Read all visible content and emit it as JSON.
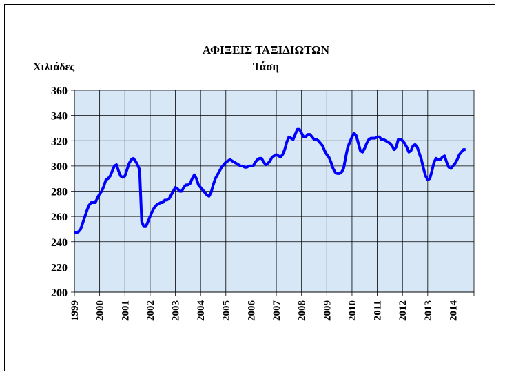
{
  "chart_data": {
    "type": "line",
    "title": "ΑΦΙΞΕΙΣ ΤΑΞΙΔΙΩΤΩΝ",
    "subtitle": "Τάση",
    "y_label": "Χιλιάδες",
    "categories": [
      "1999",
      null,
      null,
      null,
      null,
      null,
      null,
      null,
      null,
      null,
      null,
      null,
      "2000",
      null,
      null,
      null,
      null,
      null,
      null,
      null,
      null,
      null,
      null,
      null,
      "2001",
      null,
      null,
      null,
      null,
      null,
      null,
      null,
      null,
      null,
      null,
      null,
      "2002",
      null,
      null,
      null,
      null,
      null,
      null,
      null,
      null,
      null,
      null,
      null,
      "2003",
      null,
      null,
      null,
      null,
      null,
      null,
      null,
      null,
      null,
      null,
      null,
      "2004",
      null,
      null,
      null,
      null,
      null,
      null,
      null,
      null,
      null,
      null,
      null,
      "2005",
      null,
      null,
      null,
      null,
      null,
      null,
      null,
      null,
      null,
      null,
      null,
      "2006",
      null,
      null,
      null,
      null,
      null,
      null,
      null,
      null,
      null,
      null,
      null,
      "2007",
      null,
      null,
      null,
      null,
      null,
      null,
      null,
      null,
      null,
      null,
      null,
      "2008",
      null,
      null,
      null,
      null,
      null,
      null,
      null,
      null,
      null,
      null,
      null,
      "2009",
      null,
      null,
      null,
      null,
      null,
      null,
      null,
      null,
      null,
      null,
      null,
      "2010",
      null,
      null,
      null,
      null,
      null,
      null,
      null,
      null,
      null,
      null,
      null,
      "2011",
      null,
      null,
      null,
      null,
      null,
      null,
      null,
      null,
      null,
      null,
      null,
      "2012",
      null,
      null,
      null,
      null,
      null,
      null,
      null,
      null,
      null,
      null,
      null,
      "2013",
      null,
      null,
      null,
      null,
      null,
      null,
      null,
      null,
      null,
      null,
      null,
      "2014",
      null,
      null,
      null,
      null,
      null,
      null
    ],
    "series": [
      {
        "name": "Τάση",
        "color": "#0000ff",
        "values": [
          247,
          247,
          248,
          250,
          255,
          260,
          265,
          269,
          271,
          271,
          271,
          275,
          278,
          280,
          284,
          289,
          290,
          292,
          296,
          300,
          301,
          296,
          292,
          291,
          292,
          297,
          302,
          305,
          306,
          304,
          301,
          297,
          256,
          252,
          252,
          256,
          260,
          264,
          267,
          269,
          270,
          271,
          271,
          273,
          273,
          274,
          277,
          280,
          283,
          282,
          280,
          280,
          283,
          285,
          285,
          286,
          290,
          293,
          290,
          285,
          283,
          281,
          279,
          277,
          276,
          279,
          285,
          290,
          293,
          296,
          299,
          301,
          303,
          304,
          305,
          304,
          303,
          302,
          301,
          300,
          300,
          299,
          299,
          300,
          300,
          300,
          303,
          305,
          306,
          306,
          303,
          301,
          302,
          304,
          307,
          308,
          309,
          308,
          307,
          309,
          313,
          319,
          323,
          322,
          321,
          325,
          329,
          329,
          326,
          323,
          323,
          325,
          325,
          323,
          321,
          321,
          320,
          318,
          316,
          312,
          309,
          307,
          303,
          298,
          295,
          294,
          294,
          295,
          298,
          307,
          315,
          319,
          323,
          326,
          324,
          318,
          312,
          311,
          314,
          318,
          321,
          322,
          322,
          322,
          323,
          323,
          321,
          321,
          320,
          319,
          318,
          316,
          313,
          315,
          321,
          321,
          320,
          318,
          315,
          311,
          312,
          316,
          317,
          315,
          310,
          305,
          298,
          292,
          289,
          290,
          296,
          303,
          306,
          305,
          305,
          307,
          308,
          303,
          299,
          298,
          300,
          302,
          305,
          309,
          311,
          313,
          313
        ]
      }
    ],
    "ylim": [
      200,
      360
    ],
    "yticks": [
      200,
      220,
      240,
      260,
      280,
      300,
      320,
      340,
      360
    ],
    "grid": true
  }
}
